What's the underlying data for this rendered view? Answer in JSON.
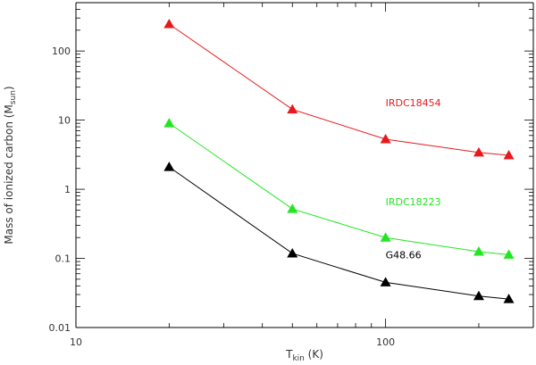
{
  "chart_data": {
    "type": "line",
    "title": "",
    "xlabel_main": "T",
    "xlabel_sub": "kin",
    "xlabel_unit": " (K)",
    "ylabel_main": "Mass of ionized carbon (M",
    "ylabel_sub": "sun",
    "ylabel_close": ")",
    "x_scale": "log",
    "y_scale": "log",
    "xlim": [
      10,
      300
    ],
    "ylim": [
      0.01,
      500
    ],
    "x_ticks": [
      {
        "value": 10,
        "label": "10"
      },
      {
        "value": 100,
        "label": "100"
      }
    ],
    "y_ticks": [
      {
        "value": 0.01,
        "label": "0.01"
      },
      {
        "value": 0.1,
        "label": "0.1"
      },
      {
        "value": 1,
        "label": "1"
      },
      {
        "value": 10,
        "label": "10"
      },
      {
        "value": 100,
        "label": "100"
      }
    ],
    "grid": false,
    "marker": "triangle",
    "series": [
      {
        "name": "IRDC18454",
        "color": "#e8191c",
        "x": [
          20,
          50,
          100,
          200,
          250
        ],
        "y": [
          245,
          14.3,
          5.3,
          3.4,
          3.1
        ],
        "label_anchor": {
          "x": 100,
          "y": 16
        }
      },
      {
        "name": "IRDC18223",
        "color": "#22e622",
        "x": [
          20,
          50,
          100,
          200,
          250
        ],
        "y": [
          9.0,
          0.52,
          0.2,
          0.125,
          0.113
        ],
        "label_anchor": {
          "x": 100,
          "y": 0.59
        }
      },
      {
        "name": "G48.66",
        "color": "#000000",
        "x": [
          20,
          50,
          100,
          200,
          250
        ],
        "y": [
          2.1,
          0.118,
          0.045,
          0.0285,
          0.0258
        ],
        "label_anchor": {
          "x": 100,
          "y": 0.1
        }
      }
    ]
  }
}
